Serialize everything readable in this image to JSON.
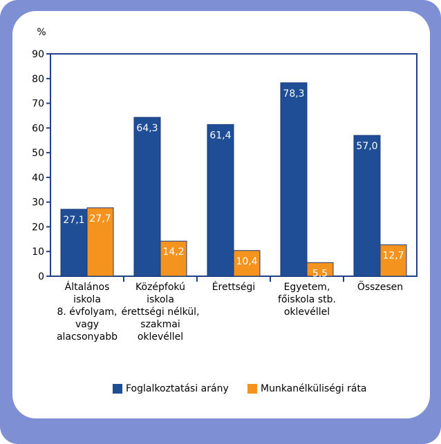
{
  "chart_data": {
    "type": "bar",
    "y_unit": "%",
    "ylim": [
      0,
      90
    ],
    "yticks": [
      "0",
      "10",
      "20",
      "30",
      "40",
      "50",
      "60",
      "70",
      "80",
      "90"
    ],
    "grid": false,
    "legend_position": "bottom",
    "categories": [
      [
        "Általános",
        "iskola",
        "8. évfolyam,",
        "vagy",
        "alacsonyabb"
      ],
      [
        "Középfokú",
        "iskola",
        "érettségi nélkül,",
        "szakmai",
        "oklevéllel"
      ],
      [
        "Érettségi"
      ],
      [
        "Egyetem,",
        "főiskola stb.",
        "oklevéllel"
      ],
      [
        "Összesen"
      ]
    ],
    "series": [
      {
        "name": "Foglalkoztatási arány",
        "color": "#1f4e96",
        "values": [
          27.1,
          64.3,
          61.4,
          78.3,
          57.0
        ],
        "labels": [
          "27,1",
          "64,3",
          "61,4",
          "78,3",
          "57,0"
        ]
      },
      {
        "name": "Munkanélküliségi ráta",
        "color": "#f4941e",
        "values": [
          27.7,
          14.2,
          10.4,
          5.5,
          12.7
        ],
        "labels": [
          "27,7",
          "14,2",
          "10,4",
          "5,5",
          "12,7"
        ]
      }
    ]
  }
}
